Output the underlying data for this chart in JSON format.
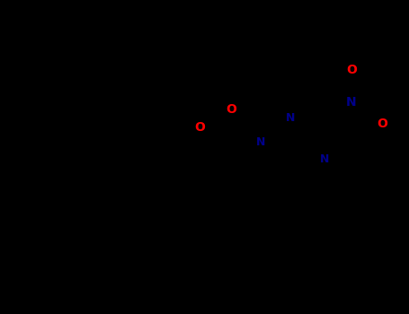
{
  "bg_color": "#000000",
  "line_color": "#000000",
  "O_color": "#ff0000",
  "N_color": "#00008b",
  "lw": 1.8,
  "fs": 9,
  "fig_width": 4.55,
  "fig_height": 3.5,
  "dpi": 100,
  "xlim": [
    -2.5,
    5.5
  ],
  "ylim": [
    -3.5,
    3.0
  ]
}
